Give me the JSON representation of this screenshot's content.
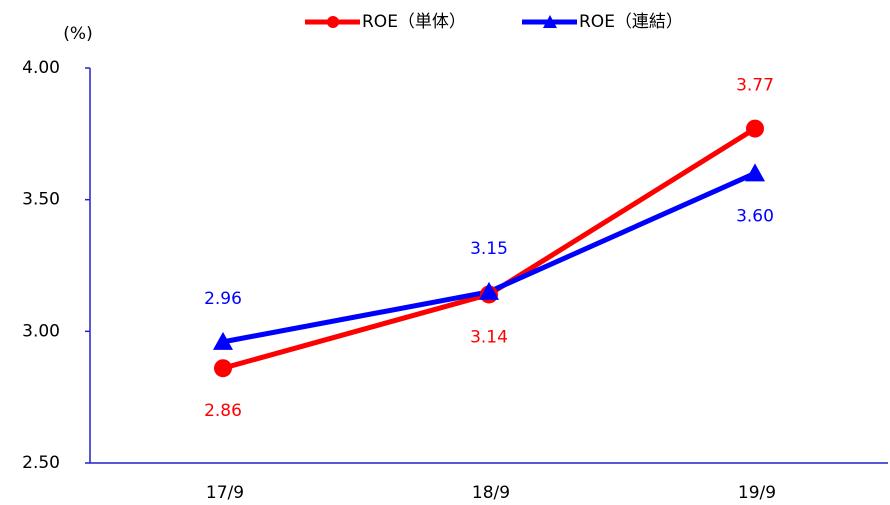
{
  "chart_data": {
    "type": "line",
    "y_label": "(%)",
    "categories": [
      "17/9",
      "18/9",
      "19/9"
    ],
    "series": [
      {
        "name": "ROE（単体）",
        "color": "#ff0000",
        "marker": "circle",
        "values": [
          2.86,
          3.14,
          3.77
        ],
        "value_labels": [
          "2.86",
          "3.14",
          "3.77"
        ]
      },
      {
        "name": "ROE（連結）",
        "color": "#0000ff",
        "marker": "triangle",
        "values": [
          2.96,
          3.15,
          3.6
        ],
        "value_labels": [
          "2.96",
          "3.15",
          "3.60"
        ]
      }
    ],
    "ylim": [
      2.5,
      4.0
    ],
    "yticks": [
      {
        "value": 2.5,
        "label": "2.50"
      },
      {
        "value": 3.0,
        "label": "3.00"
      },
      {
        "value": 3.5,
        "label": "3.50"
      },
      {
        "value": 4.0,
        "label": "4.00"
      }
    ],
    "grid": false,
    "legend": "top"
  }
}
